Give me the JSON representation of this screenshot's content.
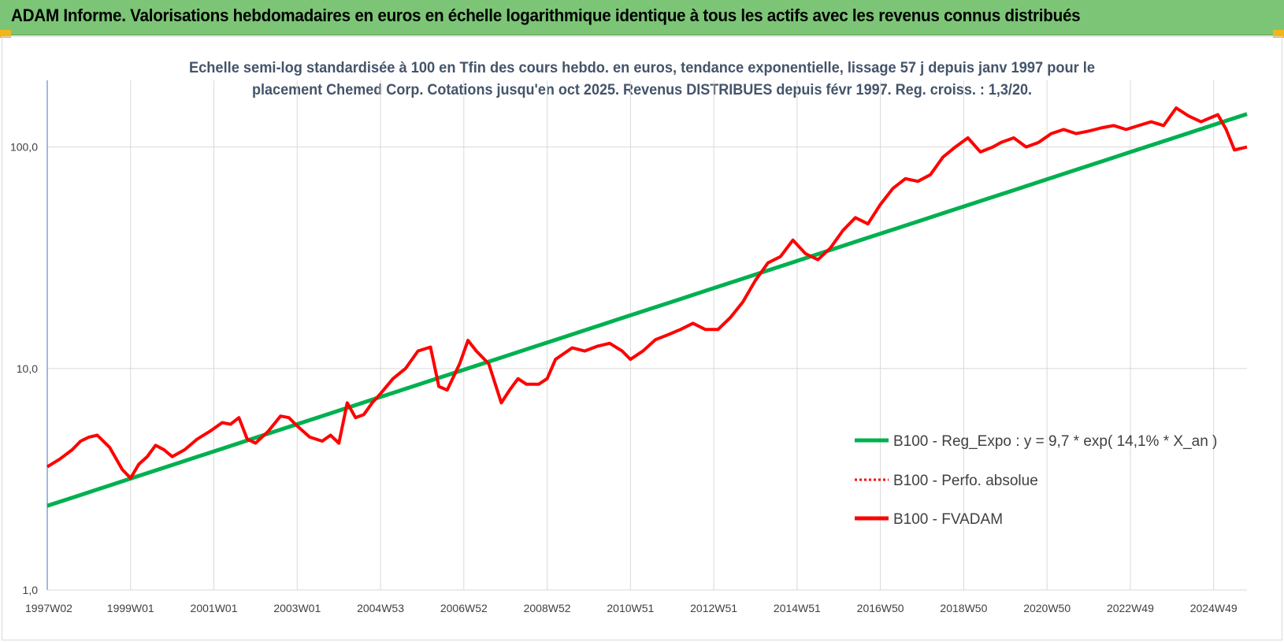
{
  "header": {
    "banner_title": "ADAM Informe. Valorisations hebdomadaires en euros en échelle logarithmique identique à tous les actifs avec les revenus connus distribués"
  },
  "colors": {
    "banner_bg": "#7cc576",
    "corner_accent": "#f2b61b",
    "trend_line": "#00b050",
    "fvadam_line": "#ff0000",
    "perfo_line": "#ff0000",
    "title_text": "#44546a"
  },
  "chart_data": {
    "type": "line",
    "title_lines": [
      "Echelle semi-log standardisée à 100 en Tfin des cours hebdo. en euros, tendance exponentielle, lissage 57 j depuis janv 1997 pour le",
      "placement Chemed Corp. Cotations jusqu'en oct 2025. Revenus DISTRIBUES depuis févr 1997. Reg. croiss. : 1,3/20."
    ],
    "y_scale": "log",
    "ylim": [
      1,
      200
    ],
    "y_ticks": [
      "1,0",
      "10,0",
      "100,0"
    ],
    "y_tick_values": [
      1,
      10,
      100
    ],
    "xlim": [
      1997.0,
      2025.8
    ],
    "x_ticks": [
      "1997W02",
      "1999W01",
      "2001W01",
      "2003W01",
      "2004W53",
      "2006W52",
      "2008W52",
      "2010W51",
      "2012W51",
      "2014W51",
      "2016W50",
      "2018W50",
      "2020W50",
      "2022W49",
      "2024W49"
    ],
    "x_tick_years": [
      1997.0,
      1999.0,
      2001.0,
      2003.0,
      2005.0,
      2007.0,
      2009.0,
      2011.0,
      2013.0,
      2015.0,
      2017.0,
      2019.0,
      2021.0,
      2023.0,
      2025.0
    ],
    "grid": "vertical-and-horizontal",
    "legend_position": "right-center",
    "legend": [
      {
        "label": "B100 - Reg_Expo : y = 9,7 * exp( 14,1% *  X_an )",
        "style": "solid",
        "color": "#00b050"
      },
      {
        "label": "B100 - Perfo. absolue",
        "style": "dotted",
        "color": "#ff0000"
      },
      {
        "label": "B100 - FVADAM",
        "style": "solid",
        "color": "#ff0000"
      }
    ],
    "series": [
      {
        "name": "B100 - Reg_Expo",
        "x": [
          1997.0,
          2025.8
        ],
        "values": [
          2.4,
          141
        ]
      },
      {
        "name": "B100 - FVADAM",
        "x": [
          1997.0,
          1997.3,
          1997.6,
          1997.8,
          1998.0,
          1998.2,
          1998.5,
          1998.8,
          1999.0,
          1999.2,
          1999.4,
          1999.6,
          1999.8,
          2000.0,
          2000.3,
          2000.6,
          2000.9,
          2001.2,
          2001.4,
          2001.6,
          2001.8,
          2002.0,
          2002.3,
          2002.6,
          2002.8,
          2003.0,
          2003.3,
          2003.6,
          2003.8,
          2004.0,
          2004.2,
          2004.4,
          2004.6,
          2004.8,
          2005.0,
          2005.3,
          2005.6,
          2005.9,
          2006.2,
          2006.4,
          2006.6,
          2006.9,
          2007.1,
          2007.3,
          2007.6,
          2007.9,
          2008.1,
          2008.3,
          2008.5,
          2008.8,
          2009.0,
          2009.2,
          2009.6,
          2009.9,
          2010.2,
          2010.5,
          2010.8,
          2011.0,
          2011.3,
          2011.6,
          2011.9,
          2012.2,
          2012.5,
          2012.8,
          2013.1,
          2013.4,
          2013.7,
          2014.0,
          2014.3,
          2014.6,
          2014.9,
          2015.2,
          2015.5,
          2015.8,
          2016.1,
          2016.4,
          2016.7,
          2017.0,
          2017.3,
          2017.6,
          2017.9,
          2018.2,
          2018.5,
          2018.8,
          2019.1,
          2019.4,
          2019.7,
          2019.9,
          2020.2,
          2020.5,
          2020.8,
          2021.1,
          2021.4,
          2021.7,
          2022.0,
          2022.3,
          2022.6,
          2022.9,
          2023.2,
          2023.5,
          2023.8,
          2024.1,
          2024.4,
          2024.7,
          2024.9,
          2025.1,
          2025.3,
          2025.5,
          2025.8
        ],
        "values": [
          3.6,
          3.9,
          4.3,
          4.7,
          4.9,
          5.0,
          4.4,
          3.5,
          3.2,
          3.7,
          4.0,
          4.5,
          4.3,
          4.0,
          4.3,
          4.8,
          5.2,
          5.7,
          5.6,
          6.0,
          4.8,
          4.6,
          5.2,
          6.1,
          6.0,
          5.5,
          4.9,
          4.7,
          5.0,
          4.6,
          7.0,
          6.0,
          6.2,
          7.0,
          7.7,
          9.0,
          10.0,
          12.0,
          12.5,
          8.3,
          8.0,
          10.5,
          13.4,
          12.0,
          10.5,
          7.0,
          8.0,
          9.0,
          8.5,
          8.5,
          9.0,
          11.0,
          12.4,
          12.0,
          12.6,
          13.0,
          12.0,
          11.0,
          12.0,
          13.5,
          14.2,
          15.0,
          16.0,
          15.0,
          15.0,
          17.0,
          20.0,
          25.0,
          30.0,
          32.0,
          38.0,
          33.0,
          31.0,
          35.0,
          42.0,
          48.0,
          45.0,
          55.0,
          65.0,
          72.0,
          70.0,
          75.0,
          90.0,
          100.0,
          110.0,
          95.0,
          100.0,
          105.0,
          110.0,
          100.0,
          105.0,
          115.0,
          120.0,
          115.0,
          118.0,
          122.0,
          125.0,
          120.0,
          125.0,
          130.0,
          125.0,
          150.0,
          138.0,
          130.0,
          135.0,
          140.0,
          120.0,
          97.0,
          100.0
        ]
      }
    ]
  }
}
